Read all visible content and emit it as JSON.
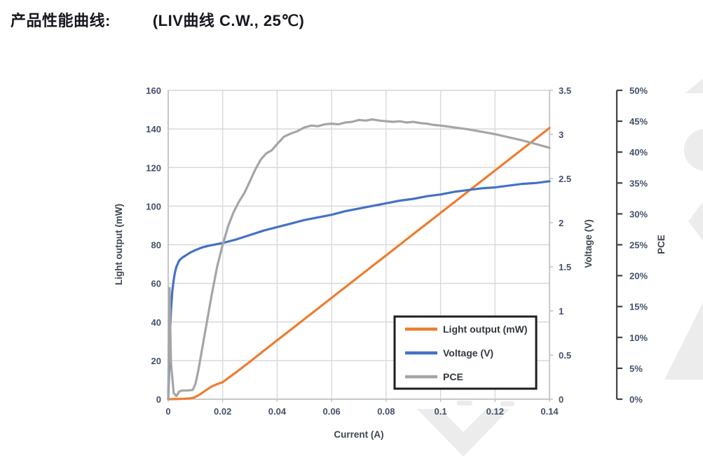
{
  "header": {
    "label": "产品性能曲线:",
    "conditions": "(LIV曲线 C.W., 25℃)"
  },
  "colors": {
    "light_output": "#ED7D31",
    "voltage": "#4472C4",
    "pce": "#A5A5A5",
    "grid": "#D9D9D9",
    "axis_line": "#BFBFBF",
    "pce_axis_line": "#404040",
    "tick_text": "#44506B",
    "axis_title_text": "#3F4652",
    "legend_text": "#33383F",
    "legend_border": "#1F1F1F",
    "watermark": "#ECECEC",
    "title_text": "#17171F"
  },
  "chart_data": {
    "type": "line",
    "title": "",
    "xlabel": "Current (A)",
    "grid": true,
    "x_axis": {
      "min": 0,
      "max": 0.14,
      "ticks": [
        0,
        0.02,
        0.04,
        0.06,
        0.08,
        0.1,
        0.12,
        0.14
      ],
      "tick_labels": [
        "0",
        "0.02",
        "0.04",
        "0.06",
        "0.08",
        "0.1",
        "0.12",
        "0.14"
      ]
    },
    "axes": {
      "left": {
        "label": "Light output (mW)",
        "min": 0,
        "max": 160,
        "ticks": [
          0,
          20,
          40,
          60,
          80,
          100,
          120,
          140,
          160
        ],
        "tick_labels": [
          "0",
          "20",
          "40",
          "60",
          "80",
          "100",
          "120",
          "140",
          "160"
        ]
      },
      "voltage": {
        "label": "Voltage (V)",
        "min": 0,
        "max": 3.5,
        "ticks": [
          0,
          0.5,
          1,
          1.5,
          2,
          2.5,
          3,
          3.5
        ],
        "tick_labels": [
          "0",
          "0.5",
          "1",
          "1.5",
          "2",
          "2.5",
          "3",
          "3.5"
        ]
      },
      "pce": {
        "label": "PCE",
        "min": 0,
        "max": 50,
        "ticks": [
          0,
          5,
          10,
          15,
          20,
          25,
          30,
          35,
          40,
          45,
          50
        ],
        "tick_labels": [
          "0%",
          "5%",
          "10%",
          "15%",
          "20%",
          "25%",
          "30%",
          "35%",
          "40%",
          "45%",
          "50%"
        ]
      }
    },
    "legend": {
      "position": "inside-bottom-right",
      "entries": [
        "Light output (mW)",
        "Voltage (V)",
        "PCE"
      ]
    },
    "series": [
      {
        "name": "Light output (mW)",
        "axis": "left",
        "color": "#ED7D31",
        "points": [
          [
            0,
            0
          ],
          [
            0.002,
            0.05
          ],
          [
            0.004,
            0.1
          ],
          [
            0.006,
            0.2
          ],
          [
            0.008,
            0.4
          ],
          [
            0.009,
            0.7
          ],
          [
            0.01,
            1.2
          ],
          [
            0.011,
            1.9
          ],
          [
            0.012,
            2.8
          ],
          [
            0.013,
            3.8
          ],
          [
            0.014,
            4.8
          ],
          [
            0.016,
            6.6
          ],
          [
            0.018,
            7.8
          ],
          [
            0.02,
            8.8
          ],
          [
            0.025,
            14
          ],
          [
            0.03,
            19.4
          ],
          [
            0.035,
            25
          ],
          [
            0.04,
            30.5
          ],
          [
            0.045,
            36
          ],
          [
            0.05,
            41.5
          ],
          [
            0.055,
            47
          ],
          [
            0.06,
            52.5
          ],
          [
            0.065,
            58
          ],
          [
            0.07,
            63.5
          ],
          [
            0.075,
            69
          ],
          [
            0.08,
            74.5
          ],
          [
            0.085,
            80
          ],
          [
            0.09,
            85.5
          ],
          [
            0.095,
            91
          ],
          [
            0.1,
            96.5
          ],
          [
            0.105,
            102
          ],
          [
            0.11,
            107.5
          ],
          [
            0.115,
            113
          ],
          [
            0.12,
            118.5
          ],
          [
            0.125,
            124
          ],
          [
            0.13,
            129.5
          ],
          [
            0.135,
            135
          ],
          [
            0.14,
            140.5
          ]
        ]
      },
      {
        "name": "Voltage (V)",
        "axis": "voltage",
        "color": "#4472C4",
        "points": [
          [
            0,
            0
          ],
          [
            0.0003,
            0.3
          ],
          [
            0.0006,
            0.7
          ],
          [
            0.001,
            1
          ],
          [
            0.0015,
            1.22
          ],
          [
            0.002,
            1.35
          ],
          [
            0.0025,
            1.44
          ],
          [
            0.003,
            1.5
          ],
          [
            0.004,
            1.57
          ],
          [
            0.005,
            1.6
          ],
          [
            0.006,
            1.62
          ],
          [
            0.008,
            1.66
          ],
          [
            0.01,
            1.69
          ],
          [
            0.0125,
            1.72
          ],
          [
            0.015,
            1.74
          ],
          [
            0.02,
            1.77
          ],
          [
            0.025,
            1.81
          ],
          [
            0.03,
            1.86
          ],
          [
            0.035,
            1.91
          ],
          [
            0.04,
            1.95
          ],
          [
            0.045,
            1.99
          ],
          [
            0.05,
            2.03
          ],
          [
            0.055,
            2.06
          ],
          [
            0.06,
            2.09
          ],
          [
            0.065,
            2.13
          ],
          [
            0.07,
            2.16
          ],
          [
            0.075,
            2.19
          ],
          [
            0.08,
            2.22
          ],
          [
            0.085,
            2.25
          ],
          [
            0.09,
            2.27
          ],
          [
            0.095,
            2.3
          ],
          [
            0.1,
            2.32
          ],
          [
            0.105,
            2.35
          ],
          [
            0.11,
            2.37
          ],
          [
            0.115,
            2.39
          ],
          [
            0.12,
            2.4
          ],
          [
            0.125,
            2.42
          ],
          [
            0.13,
            2.44
          ],
          [
            0.135,
            2.45
          ],
          [
            0.14,
            2.47
          ]
        ]
      },
      {
        "name": "PCE",
        "axis": "pce",
        "color": "#A5A5A5",
        "points": [
          [
            0,
            0
          ],
          [
            0.0005,
            18
          ],
          [
            0.001,
            6
          ],
          [
            0.002,
            1
          ],
          [
            0.003,
            0.5
          ],
          [
            0.004,
            1.2
          ],
          [
            0.005,
            1.4
          ],
          [
            0.007,
            1.4
          ],
          [
            0.009,
            1.5
          ],
          [
            0.01,
            2.5
          ],
          [
            0.011,
            4.5
          ],
          [
            0.012,
            7
          ],
          [
            0.013,
            9.5
          ],
          [
            0.014,
            12
          ],
          [
            0.015,
            14.5
          ],
          [
            0.016,
            17
          ],
          [
            0.018,
            21.5
          ],
          [
            0.02,
            25
          ],
          [
            0.022,
            28
          ],
          [
            0.024,
            30.3
          ],
          [
            0.026,
            32
          ],
          [
            0.028,
            33.4
          ],
          [
            0.03,
            35.3
          ],
          [
            0.032,
            37.2
          ],
          [
            0.034,
            38.8
          ],
          [
            0.036,
            39.8
          ],
          [
            0.038,
            40.3
          ],
          [
            0.04,
            41.3
          ],
          [
            0.0425,
            42.5
          ],
          [
            0.045,
            43
          ],
          [
            0.0475,
            43.4
          ],
          [
            0.05,
            44
          ],
          [
            0.0525,
            44.3
          ],
          [
            0.055,
            44.2
          ],
          [
            0.0575,
            44.5
          ],
          [
            0.06,
            44.6
          ],
          [
            0.0625,
            44.5
          ],
          [
            0.065,
            44.8
          ],
          [
            0.0675,
            44.9
          ],
          [
            0.07,
            45.2
          ],
          [
            0.0725,
            45.1
          ],
          [
            0.075,
            45.3
          ],
          [
            0.0775,
            45.1
          ],
          [
            0.08,
            45
          ],
          [
            0.0825,
            44.9
          ],
          [
            0.085,
            45
          ],
          [
            0.0875,
            44.8
          ],
          [
            0.09,
            44.9
          ],
          [
            0.0925,
            44.7
          ],
          [
            0.095,
            44.6
          ],
          [
            0.0975,
            44.4
          ],
          [
            0.1,
            44.3
          ],
          [
            0.105,
            44
          ],
          [
            0.11,
            43.7
          ],
          [
            0.115,
            43.3
          ],
          [
            0.12,
            42.9
          ],
          [
            0.125,
            42.4
          ],
          [
            0.13,
            41.9
          ],
          [
            0.135,
            41.3
          ],
          [
            0.14,
            40.7
          ]
        ]
      }
    ]
  }
}
